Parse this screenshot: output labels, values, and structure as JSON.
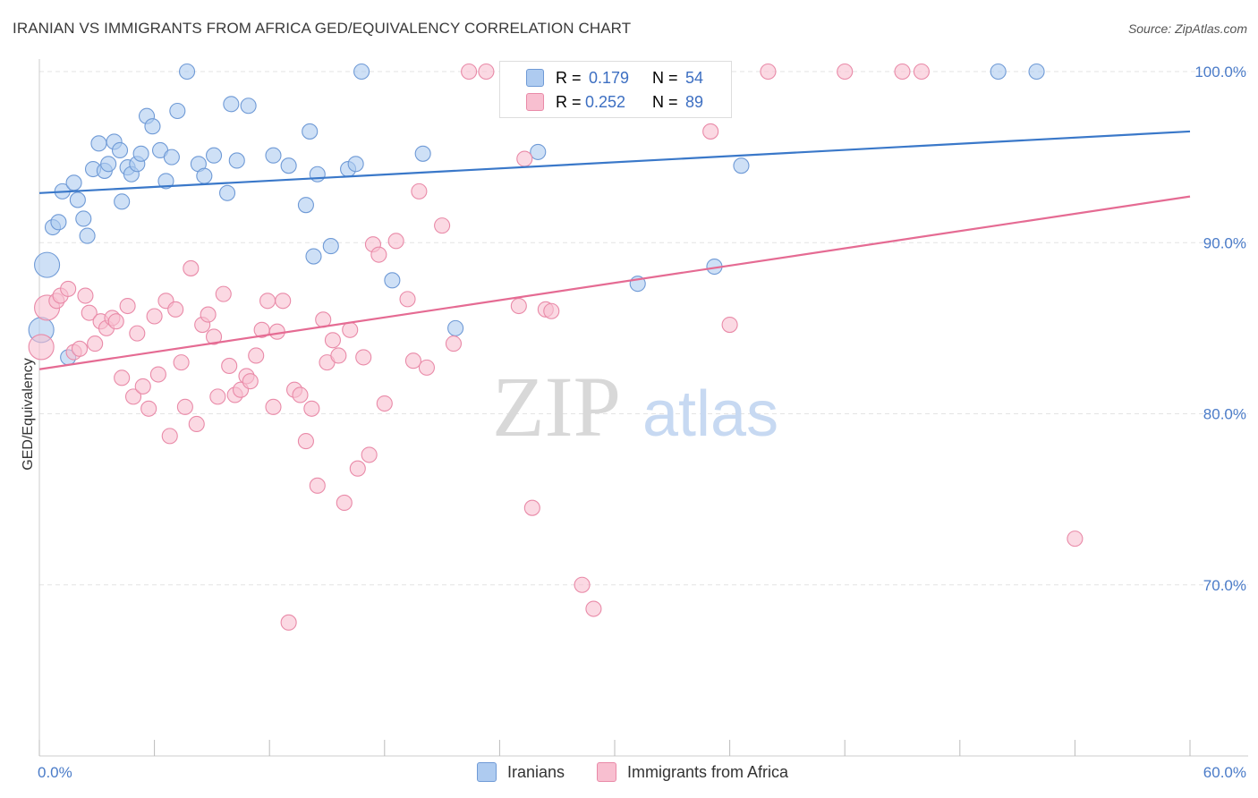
{
  "title": "IRANIAN VS IMMIGRANTS FROM AFRICA GED/EQUIVALENCY CORRELATION CHART",
  "source": "Source: ZipAtlas.com",
  "watermark": {
    "zip": "ZIP",
    "atlas": "atlas"
  },
  "legend": {
    "series": [
      {
        "r_label": "R =",
        "r_value": "0.179",
        "n_label": "N =",
        "n_value": "54"
      },
      {
        "r_label": "R =",
        "r_value": "0.252",
        "n_label": "N =",
        "n_value": "89"
      }
    ]
  },
  "bottom_legend": [
    "Iranians",
    "Immigrants from Africa"
  ],
  "colors": {
    "iranians_fill": "#aecbf0",
    "iranians_stroke": "#6f9ad6",
    "iranians_line": "#3a78c9",
    "africa_fill": "#f8bfd0",
    "africa_stroke": "#e98aa8",
    "africa_line": "#e56b93",
    "tick_text": "#4a7bc8",
    "grid": "#e3e3e3"
  },
  "chart_data": {
    "type": "scatter",
    "title": "IRANIAN VS IMMIGRANTS FROM AFRICA GED/EQUIVALENCY CORRELATION CHART",
    "xlabel": "",
    "ylabel": "GED/Equivalency",
    "xlim": [
      0,
      60
    ],
    "ylim": [
      60,
      100
    ],
    "x_tick_labels": [
      "0.0%",
      "60.0%"
    ],
    "y_ticks": [
      70,
      80,
      90,
      100
    ],
    "y_tick_labels": [
      "70.0%",
      "80.0%",
      "90.0%",
      "100.0%"
    ],
    "grid": true,
    "series": [
      {
        "name": "Iranians",
        "r": 0.179,
        "n": 54,
        "trend": {
          "x": [
            0,
            60
          ],
          "y": [
            92.9,
            96.5
          ]
        },
        "points": [
          [
            0.1,
            84.9
          ],
          [
            0.4,
            88.7
          ],
          [
            0.7,
            90.9
          ],
          [
            1.0,
            91.2
          ],
          [
            1.2,
            93.0
          ],
          [
            1.5,
            83.3
          ],
          [
            1.8,
            93.5
          ],
          [
            2.0,
            92.5
          ],
          [
            2.3,
            91.4
          ],
          [
            2.5,
            90.4
          ],
          [
            2.8,
            94.3
          ],
          [
            3.1,
            95.8
          ],
          [
            3.4,
            94.2
          ],
          [
            3.6,
            94.6
          ],
          [
            3.9,
            95.9
          ],
          [
            4.2,
            95.4
          ],
          [
            4.3,
            92.4
          ],
          [
            4.6,
            94.4
          ],
          [
            4.8,
            94.0
          ],
          [
            5.1,
            94.6
          ],
          [
            5.3,
            95.2
          ],
          [
            5.6,
            97.4
          ],
          [
            5.9,
            96.8
          ],
          [
            6.3,
            95.4
          ],
          [
            6.6,
            93.6
          ],
          [
            6.9,
            95.0
          ],
          [
            7.2,
            97.7
          ],
          [
            7.7,
            100.0
          ],
          [
            8.3,
            94.6
          ],
          [
            8.6,
            93.9
          ],
          [
            9.1,
            95.1
          ],
          [
            9.8,
            92.9
          ],
          [
            10.0,
            98.1
          ],
          [
            10.3,
            94.8
          ],
          [
            10.9,
            98.0
          ],
          [
            12.2,
            95.1
          ],
          [
            13.0,
            94.5
          ],
          [
            13.9,
            92.2
          ],
          [
            14.1,
            96.5
          ],
          [
            14.3,
            89.2
          ],
          [
            14.5,
            94.0
          ],
          [
            15.2,
            89.8
          ],
          [
            16.1,
            94.3
          ],
          [
            16.5,
            94.6
          ],
          [
            16.8,
            100.0
          ],
          [
            18.4,
            87.8
          ],
          [
            20.0,
            95.2
          ],
          [
            21.7,
            85.0
          ],
          [
            26.0,
            95.3
          ],
          [
            31.2,
            87.6
          ],
          [
            35.2,
            88.6
          ],
          [
            36.6,
            94.5
          ],
          [
            50.0,
            100.0
          ],
          [
            52.0,
            100.0
          ]
        ]
      },
      {
        "name": "Immigrants from Africa",
        "r": 0.252,
        "n": 89,
        "trend": {
          "x": [
            0,
            60
          ],
          "y": [
            82.6,
            92.7
          ]
        },
        "points": [
          [
            0.1,
            83.9
          ],
          [
            0.4,
            86.2
          ],
          [
            0.9,
            86.6
          ],
          [
            1.1,
            86.9
          ],
          [
            1.5,
            87.3
          ],
          [
            1.8,
            83.6
          ],
          [
            2.1,
            83.8
          ],
          [
            2.4,
            86.9
          ],
          [
            2.6,
            85.9
          ],
          [
            2.9,
            84.1
          ],
          [
            3.2,
            85.4
          ],
          [
            3.5,
            85.0
          ],
          [
            3.8,
            85.6
          ],
          [
            4.0,
            85.4
          ],
          [
            4.3,
            82.1
          ],
          [
            4.6,
            86.3
          ],
          [
            4.9,
            81.0
          ],
          [
            5.1,
            84.7
          ],
          [
            5.4,
            81.6
          ],
          [
            5.7,
            80.3
          ],
          [
            6.0,
            85.7
          ],
          [
            6.2,
            82.3
          ],
          [
            6.6,
            86.6
          ],
          [
            6.8,
            78.7
          ],
          [
            7.1,
            86.1
          ],
          [
            7.4,
            83.0
          ],
          [
            7.6,
            80.4
          ],
          [
            7.9,
            88.5
          ],
          [
            8.2,
            79.4
          ],
          [
            8.5,
            85.2
          ],
          [
            8.8,
            85.8
          ],
          [
            9.1,
            84.5
          ],
          [
            9.3,
            81.0
          ],
          [
            9.6,
            87.0
          ],
          [
            9.9,
            82.8
          ],
          [
            10.2,
            81.1
          ],
          [
            10.5,
            81.4
          ],
          [
            10.8,
            82.2
          ],
          [
            11.0,
            81.9
          ],
          [
            11.3,
            83.4
          ],
          [
            11.6,
            84.9
          ],
          [
            11.9,
            86.6
          ],
          [
            12.2,
            80.4
          ],
          [
            12.4,
            84.8
          ],
          [
            12.7,
            86.6
          ],
          [
            13.0,
            67.8
          ],
          [
            13.3,
            81.4
          ],
          [
            13.6,
            81.1
          ],
          [
            13.9,
            78.4
          ],
          [
            14.2,
            80.3
          ],
          [
            14.5,
            75.8
          ],
          [
            14.8,
            85.5
          ],
          [
            15.0,
            83.0
          ],
          [
            15.3,
            84.3
          ],
          [
            15.6,
            83.4
          ],
          [
            15.9,
            74.8
          ],
          [
            16.2,
            84.9
          ],
          [
            16.6,
            76.8
          ],
          [
            16.9,
            83.3
          ],
          [
            17.2,
            77.6
          ],
          [
            17.4,
            89.9
          ],
          [
            17.7,
            89.3
          ],
          [
            18.0,
            80.6
          ],
          [
            18.6,
            90.1
          ],
          [
            19.2,
            86.7
          ],
          [
            19.5,
            83.1
          ],
          [
            19.8,
            93.0
          ],
          [
            20.2,
            82.7
          ],
          [
            21.0,
            91.0
          ],
          [
            21.6,
            84.1
          ],
          [
            22.4,
            100.0
          ],
          [
            23.3,
            100.0
          ],
          [
            25.0,
            86.3
          ],
          [
            25.3,
            94.9
          ],
          [
            25.7,
            74.5
          ],
          [
            26.4,
            86.1
          ],
          [
            26.7,
            86.0
          ],
          [
            27.3,
            100.0
          ],
          [
            28.3,
            70.0
          ],
          [
            28.9,
            68.6
          ],
          [
            31.0,
            100.0
          ],
          [
            35.0,
            96.5
          ],
          [
            36.0,
            85.2
          ],
          [
            38.0,
            100.0
          ],
          [
            42.0,
            100.0
          ],
          [
            45.0,
            100.0
          ],
          [
            54.0,
            72.7
          ],
          [
            33.0,
            99.9
          ],
          [
            46.0,
            100.0
          ]
        ]
      }
    ]
  }
}
